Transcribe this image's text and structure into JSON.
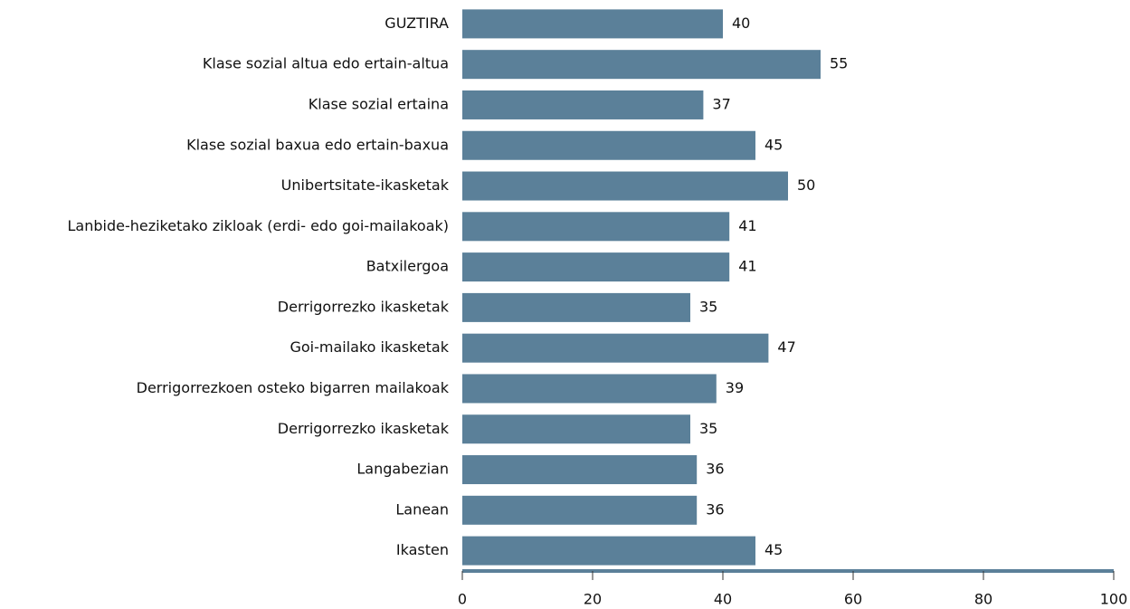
{
  "chart_data": {
    "type": "bar",
    "orientation": "horizontal",
    "categories": [
      "GUZTIRA",
      "Klase sozial altua edo ertain-altua",
      "Klase sozial ertaina",
      "Klase sozial baxua edo ertain-baxua",
      "Unibertsitate-ikasketak",
      "Lanbide-heziketako zikloak (erdi- edo goi-mailakoak)",
      "Batxilergoa",
      "Derrigorrezko ikasketak",
      "Goi-mailako ikasketak",
      "Derrigorrezkoen osteko bigarren mailakoak",
      "Derrigorrezko ikasketak",
      "Langabezian",
      "Lanean",
      "Ikasten"
    ],
    "values": [
      40,
      55,
      37,
      45,
      50,
      41,
      41,
      35,
      47,
      39,
      35,
      36,
      36,
      45
    ],
    "color": "#5b8099",
    "xlim": [
      0,
      100
    ],
    "xticks": [
      0,
      20,
      40,
      60,
      80,
      100
    ],
    "grid": false
  }
}
